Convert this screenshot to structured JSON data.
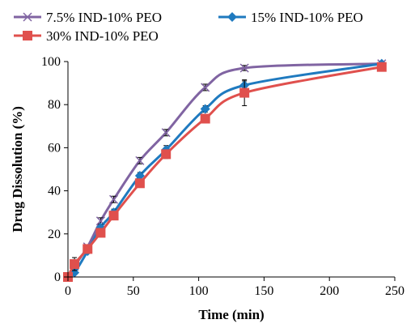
{
  "chart_data": {
    "type": "line",
    "title": "",
    "xlabel": "Time (min)",
    "ylabel": "Drug Dissolution (%)",
    "xlim": [
      0,
      250
    ],
    "ylim": [
      0,
      100
    ],
    "xticks": [
      0,
      50,
      100,
      150,
      200,
      250
    ],
    "yticks": [
      0,
      20,
      40,
      60,
      80,
      100
    ],
    "grid": false,
    "legend_position": "top",
    "series": [
      {
        "name": "7.5% IND-10% PEO",
        "color": "#8064A2",
        "marker": "x",
        "x": [
          0,
          5,
          15,
          25,
          35,
          55,
          75,
          105,
          135,
          240
        ],
        "y": [
          0,
          5,
          14,
          26,
          36,
          54,
          67,
          88,
          97,
          99
        ],
        "err": [
          0,
          2,
          1,
          1.5,
          1.5,
          1.5,
          1.5,
          1.5,
          1.2,
          0.5
        ]
      },
      {
        "name": "15% IND-10% PEO",
        "color": "#1F7ABF",
        "marker": "diamond",
        "x": [
          0,
          5,
          15,
          25,
          35,
          55,
          75,
          105,
          135,
          240
        ],
        "y": [
          0,
          2,
          12,
          23,
          30,
          47,
          59,
          78,
          89,
          99
        ],
        "err": [
          0,
          2,
          1,
          1.5,
          1.5,
          1.5,
          2,
          1.5,
          2,
          0.5
        ]
      },
      {
        "name": "30% IND-10% PEO",
        "color": "#E0504D",
        "marker": "square",
        "x": [
          0,
          5,
          15,
          25,
          35,
          55,
          75,
          105,
          135,
          240
        ],
        "y": [
          0,
          6,
          13,
          20.5,
          28.5,
          43.5,
          57,
          73.5,
          85.5,
          97.5
        ],
        "err": [
          0,
          3,
          1,
          1.5,
          1.5,
          1.5,
          2,
          1.5,
          6,
          1
        ]
      }
    ]
  }
}
